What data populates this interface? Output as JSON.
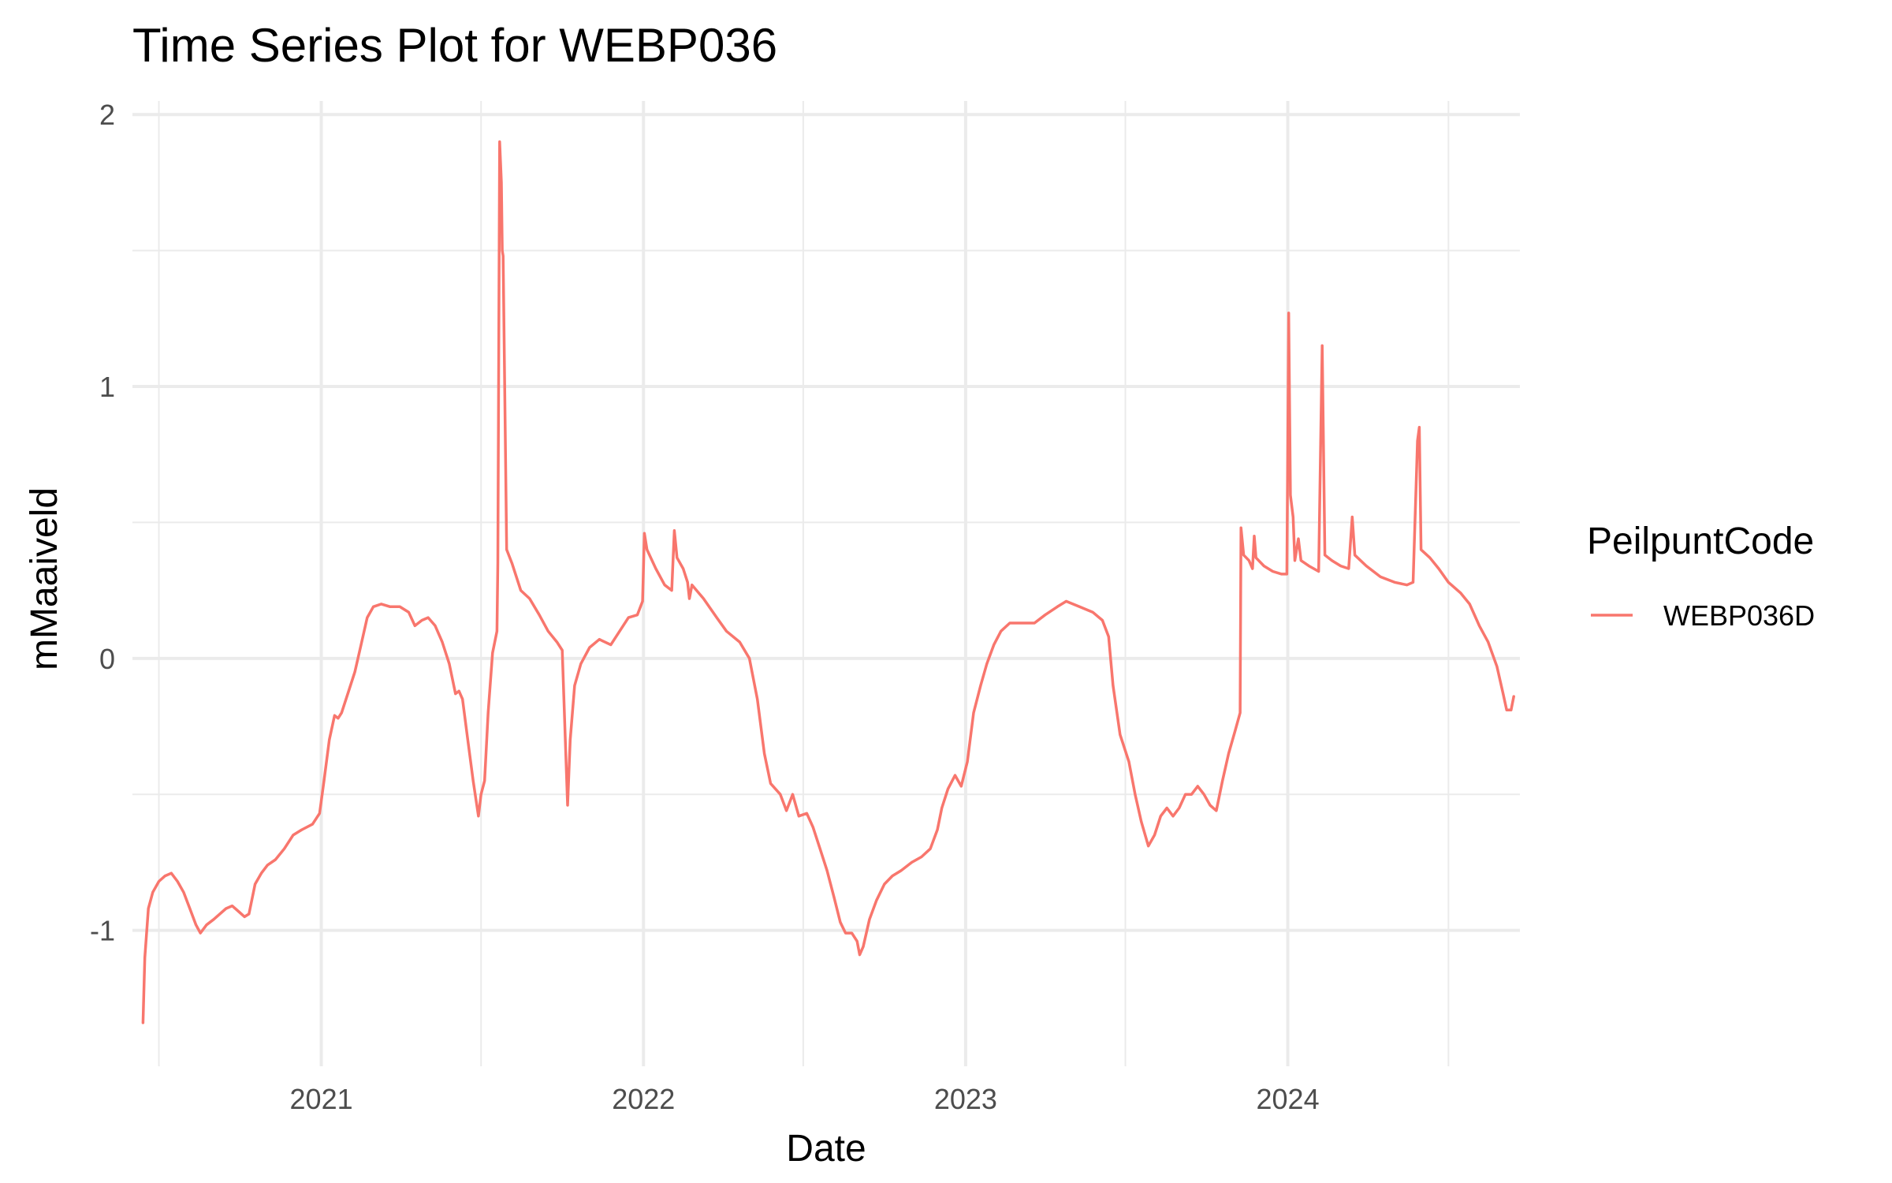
{
  "chart_data": {
    "type": "line",
    "title": "Time Series Plot for WEBP036",
    "xlabel": "Date",
    "ylabel": "mMaaiveld",
    "x_scale": "date",
    "xlim": [
      "2020-06-01",
      "2024-09-20"
    ],
    "ylim": [
      -1.5,
      2.05
    ],
    "x_ticks": [
      {
        "value": "2021-01-01",
        "label": "2021"
      },
      {
        "value": "2022-01-01",
        "label": "2022"
      },
      {
        "value": "2023-01-01",
        "label": "2023"
      },
      {
        "value": "2024-01-01",
        "label": "2024"
      }
    ],
    "x_minor_ticks": [
      "2020-07-01",
      "2021-07-01",
      "2022-07-01",
      "2023-07-01",
      "2024-07-01"
    ],
    "y_ticks": [
      {
        "value": -1,
        "label": "-1"
      },
      {
        "value": 0,
        "label": "0"
      },
      {
        "value": 1,
        "label": "1"
      },
      {
        "value": 2,
        "label": "2"
      }
    ],
    "y_minor_ticks": [
      -0.5,
      0.5,
      1.5
    ],
    "grid": true,
    "legend": {
      "title": "PeilpuntCode",
      "position": "right"
    },
    "series": [
      {
        "name": "WEBP036D",
        "color": "#F8766D",
        "points": [
          [
            "2020-06-13",
            -1.34
          ],
          [
            "2020-06-15",
            -1.1
          ],
          [
            "2020-06-19",
            -0.92
          ],
          [
            "2020-06-24",
            -0.86
          ],
          [
            "2020-07-01",
            -0.82
          ],
          [
            "2020-07-08",
            -0.8
          ],
          [
            "2020-07-15",
            -0.79
          ],
          [
            "2020-07-22",
            -0.82
          ],
          [
            "2020-07-29",
            -0.86
          ],
          [
            "2020-08-05",
            -0.92
          ],
          [
            "2020-08-12",
            -0.98
          ],
          [
            "2020-08-17",
            -1.01
          ],
          [
            "2020-08-24",
            -0.98
          ],
          [
            "2020-09-01",
            -0.96
          ],
          [
            "2020-09-08",
            -0.94
          ],
          [
            "2020-09-15",
            -0.92
          ],
          [
            "2020-09-22",
            -0.91
          ],
          [
            "2020-09-29",
            -0.93
          ],
          [
            "2020-10-06",
            -0.95
          ],
          [
            "2020-10-11",
            -0.94
          ],
          [
            "2020-10-18",
            -0.83
          ],
          [
            "2020-10-25",
            -0.79
          ],
          [
            "2020-11-01",
            -0.76
          ],
          [
            "2020-11-10",
            -0.74
          ],
          [
            "2020-11-20",
            -0.7
          ],
          [
            "2020-11-30",
            -0.65
          ],
          [
            "2020-12-10",
            -0.63
          ],
          [
            "2020-12-22",
            -0.61
          ],
          [
            "2020-12-30",
            -0.57
          ],
          [
            "2021-01-04",
            -0.45
          ],
          [
            "2021-01-10",
            -0.3
          ],
          [
            "2021-01-16",
            -0.21
          ],
          [
            "2021-01-20",
            -0.22
          ],
          [
            "2021-01-24",
            -0.2
          ],
          [
            "2021-02-01",
            -0.12
          ],
          [
            "2021-02-08",
            -0.05
          ],
          [
            "2021-02-15",
            0.05
          ],
          [
            "2021-02-22",
            0.15
          ],
          [
            "2021-03-01",
            0.19
          ],
          [
            "2021-03-10",
            0.2
          ],
          [
            "2021-03-20",
            0.19
          ],
          [
            "2021-03-31",
            0.19
          ],
          [
            "2021-04-10",
            0.17
          ],
          [
            "2021-04-17",
            0.12
          ],
          [
            "2021-04-25",
            0.14
          ],
          [
            "2021-05-02",
            0.15
          ],
          [
            "2021-05-10",
            0.12
          ],
          [
            "2021-05-18",
            0.06
          ],
          [
            "2021-05-26",
            -0.02
          ],
          [
            "2021-06-02",
            -0.13
          ],
          [
            "2021-06-06",
            -0.12
          ],
          [
            "2021-06-10",
            -0.15
          ],
          [
            "2021-06-16",
            -0.3
          ],
          [
            "2021-06-22",
            -0.45
          ],
          [
            "2021-06-28",
            -0.58
          ],
          [
            "2021-07-01",
            -0.5
          ],
          [
            "2021-07-05",
            -0.45
          ],
          [
            "2021-07-09",
            -0.2
          ],
          [
            "2021-07-14",
            0.02
          ],
          [
            "2021-07-19",
            0.1
          ],
          [
            "2021-07-20",
            0.35
          ],
          [
            "2021-07-22",
            1.9
          ],
          [
            "2021-07-24",
            1.75
          ],
          [
            "2021-07-25",
            1.5
          ],
          [
            "2021-07-26",
            1.48
          ],
          [
            "2021-07-30",
            0.4
          ],
          [
            "2021-08-05",
            0.35
          ],
          [
            "2021-08-15",
            0.25
          ],
          [
            "2021-08-25",
            0.22
          ],
          [
            "2021-09-05",
            0.16
          ],
          [
            "2021-09-15",
            0.1
          ],
          [
            "2021-09-25",
            0.06
          ],
          [
            "2021-10-01",
            0.03
          ],
          [
            "2021-10-05",
            -0.35
          ],
          [
            "2021-10-07",
            -0.54
          ],
          [
            "2021-10-10",
            -0.3
          ],
          [
            "2021-10-15",
            -0.1
          ],
          [
            "2021-10-22",
            -0.02
          ],
          [
            "2021-11-01",
            0.04
          ],
          [
            "2021-11-12",
            0.07
          ],
          [
            "2021-11-25",
            0.05
          ],
          [
            "2021-12-05",
            0.1
          ],
          [
            "2021-12-15",
            0.15
          ],
          [
            "2021-12-25",
            0.16
          ],
          [
            "2021-12-31",
            0.21
          ],
          [
            "2022-01-02",
            0.46
          ],
          [
            "2022-01-05",
            0.4
          ],
          [
            "2022-01-15",
            0.33
          ],
          [
            "2022-01-25",
            0.27
          ],
          [
            "2022-02-02",
            0.25
          ],
          [
            "2022-02-05",
            0.47
          ],
          [
            "2022-02-08",
            0.37
          ],
          [
            "2022-02-15",
            0.33
          ],
          [
            "2022-02-20",
            0.28
          ],
          [
            "2022-02-22",
            0.22
          ],
          [
            "2022-02-25",
            0.27
          ],
          [
            "2022-03-10",
            0.22
          ],
          [
            "2022-03-25",
            0.15
          ],
          [
            "2022-04-05",
            0.1
          ],
          [
            "2022-04-20",
            0.06
          ],
          [
            "2022-05-01",
            0.0
          ],
          [
            "2022-05-10",
            -0.15
          ],
          [
            "2022-05-18",
            -0.35
          ],
          [
            "2022-05-25",
            -0.46
          ],
          [
            "2022-06-05",
            -0.5
          ],
          [
            "2022-06-12",
            -0.56
          ],
          [
            "2022-06-19",
            -0.5
          ],
          [
            "2022-06-26",
            -0.58
          ],
          [
            "2022-07-05",
            -0.57
          ],
          [
            "2022-07-12",
            -0.62
          ],
          [
            "2022-07-20",
            -0.7
          ],
          [
            "2022-07-28",
            -0.78
          ],
          [
            "2022-08-05",
            -0.88
          ],
          [
            "2022-08-12",
            -0.97
          ],
          [
            "2022-08-18",
            -1.01
          ],
          [
            "2022-08-25",
            -1.01
          ],
          [
            "2022-08-31",
            -1.04
          ],
          [
            "2022-09-03",
            -1.09
          ],
          [
            "2022-09-07",
            -1.06
          ],
          [
            "2022-09-14",
            -0.96
          ],
          [
            "2022-09-22",
            -0.89
          ],
          [
            "2022-10-01",
            -0.83
          ],
          [
            "2022-10-10",
            -0.8
          ],
          [
            "2022-10-20",
            -0.78
          ],
          [
            "2022-11-01",
            -0.75
          ],
          [
            "2022-11-12",
            -0.73
          ],
          [
            "2022-11-22",
            -0.7
          ],
          [
            "2022-11-30",
            -0.63
          ],
          [
            "2022-12-05",
            -0.55
          ],
          [
            "2022-12-12",
            -0.48
          ],
          [
            "2022-12-20",
            -0.43
          ],
          [
            "2022-12-27",
            -0.47
          ],
          [
            "2023-01-03",
            -0.38
          ],
          [
            "2023-01-10",
            -0.2
          ],
          [
            "2023-01-18",
            -0.1
          ],
          [
            "2023-01-25",
            -0.02
          ],
          [
            "2023-02-02",
            0.05
          ],
          [
            "2023-02-10",
            0.1
          ],
          [
            "2023-02-20",
            0.13
          ],
          [
            "2023-03-05",
            0.13
          ],
          [
            "2023-03-20",
            0.13
          ],
          [
            "2023-04-01",
            0.16
          ],
          [
            "2023-04-15",
            0.19
          ],
          [
            "2023-04-25",
            0.21
          ],
          [
            "2023-05-10",
            0.19
          ],
          [
            "2023-05-25",
            0.17
          ],
          [
            "2023-06-05",
            0.14
          ],
          [
            "2023-06-12",
            0.08
          ],
          [
            "2023-06-17",
            -0.1
          ],
          [
            "2023-06-25",
            -0.28
          ],
          [
            "2023-07-05",
            -0.38
          ],
          [
            "2023-07-12",
            -0.5
          ],
          [
            "2023-07-19",
            -0.6
          ],
          [
            "2023-07-27",
            -0.69
          ],
          [
            "2023-08-03",
            -0.65
          ],
          [
            "2023-08-10",
            -0.58
          ],
          [
            "2023-08-17",
            -0.55
          ],
          [
            "2023-08-24",
            -0.58
          ],
          [
            "2023-08-31",
            -0.55
          ],
          [
            "2023-09-07",
            -0.5
          ],
          [
            "2023-09-14",
            -0.5
          ],
          [
            "2023-09-21",
            -0.47
          ],
          [
            "2023-09-28",
            -0.5
          ],
          [
            "2023-10-05",
            -0.54
          ],
          [
            "2023-10-12",
            -0.56
          ],
          [
            "2023-10-19",
            -0.45
          ],
          [
            "2023-10-26",
            -0.35
          ],
          [
            "2023-11-02",
            -0.27
          ],
          [
            "2023-11-08",
            -0.2
          ],
          [
            "2023-11-09",
            0.48
          ],
          [
            "2023-11-12",
            0.38
          ],
          [
            "2023-11-18",
            0.36
          ],
          [
            "2023-11-22",
            0.33
          ],
          [
            "2023-11-24",
            0.45
          ],
          [
            "2023-11-26",
            0.37
          ],
          [
            "2023-12-05",
            0.34
          ],
          [
            "2023-12-15",
            0.32
          ],
          [
            "2023-12-25",
            0.31
          ],
          [
            "2023-12-31",
            0.31
          ],
          [
            "2024-01-02",
            1.27
          ],
          [
            "2024-01-04",
            0.6
          ],
          [
            "2024-01-07",
            0.52
          ],
          [
            "2024-01-09",
            0.36
          ],
          [
            "2024-01-13",
            0.44
          ],
          [
            "2024-01-16",
            0.36
          ],
          [
            "2024-01-25",
            0.34
          ],
          [
            "2024-02-05",
            0.32
          ],
          [
            "2024-02-09",
            1.15
          ],
          [
            "2024-02-12",
            0.38
          ],
          [
            "2024-02-20",
            0.36
          ],
          [
            "2024-03-01",
            0.34
          ],
          [
            "2024-03-10",
            0.33
          ],
          [
            "2024-03-14",
            0.52
          ],
          [
            "2024-03-17",
            0.38
          ],
          [
            "2024-03-30",
            0.34
          ],
          [
            "2024-04-15",
            0.3
          ],
          [
            "2024-05-01",
            0.28
          ],
          [
            "2024-05-15",
            0.27
          ],
          [
            "2024-05-22",
            0.28
          ],
          [
            "2024-05-27",
            0.8
          ],
          [
            "2024-05-29",
            0.85
          ],
          [
            "2024-05-31",
            0.4
          ],
          [
            "2024-06-10",
            0.37
          ],
          [
            "2024-06-20",
            0.33
          ],
          [
            "2024-07-01",
            0.28
          ],
          [
            "2024-07-15",
            0.24
          ],
          [
            "2024-07-25",
            0.2
          ],
          [
            "2024-08-05",
            0.12
          ],
          [
            "2024-08-15",
            0.06
          ],
          [
            "2024-08-25",
            -0.03
          ],
          [
            "2024-09-01",
            -0.13
          ],
          [
            "2024-09-05",
            -0.19
          ],
          [
            "2024-09-10",
            -0.19
          ],
          [
            "2024-09-13",
            -0.14
          ]
        ]
      }
    ]
  }
}
